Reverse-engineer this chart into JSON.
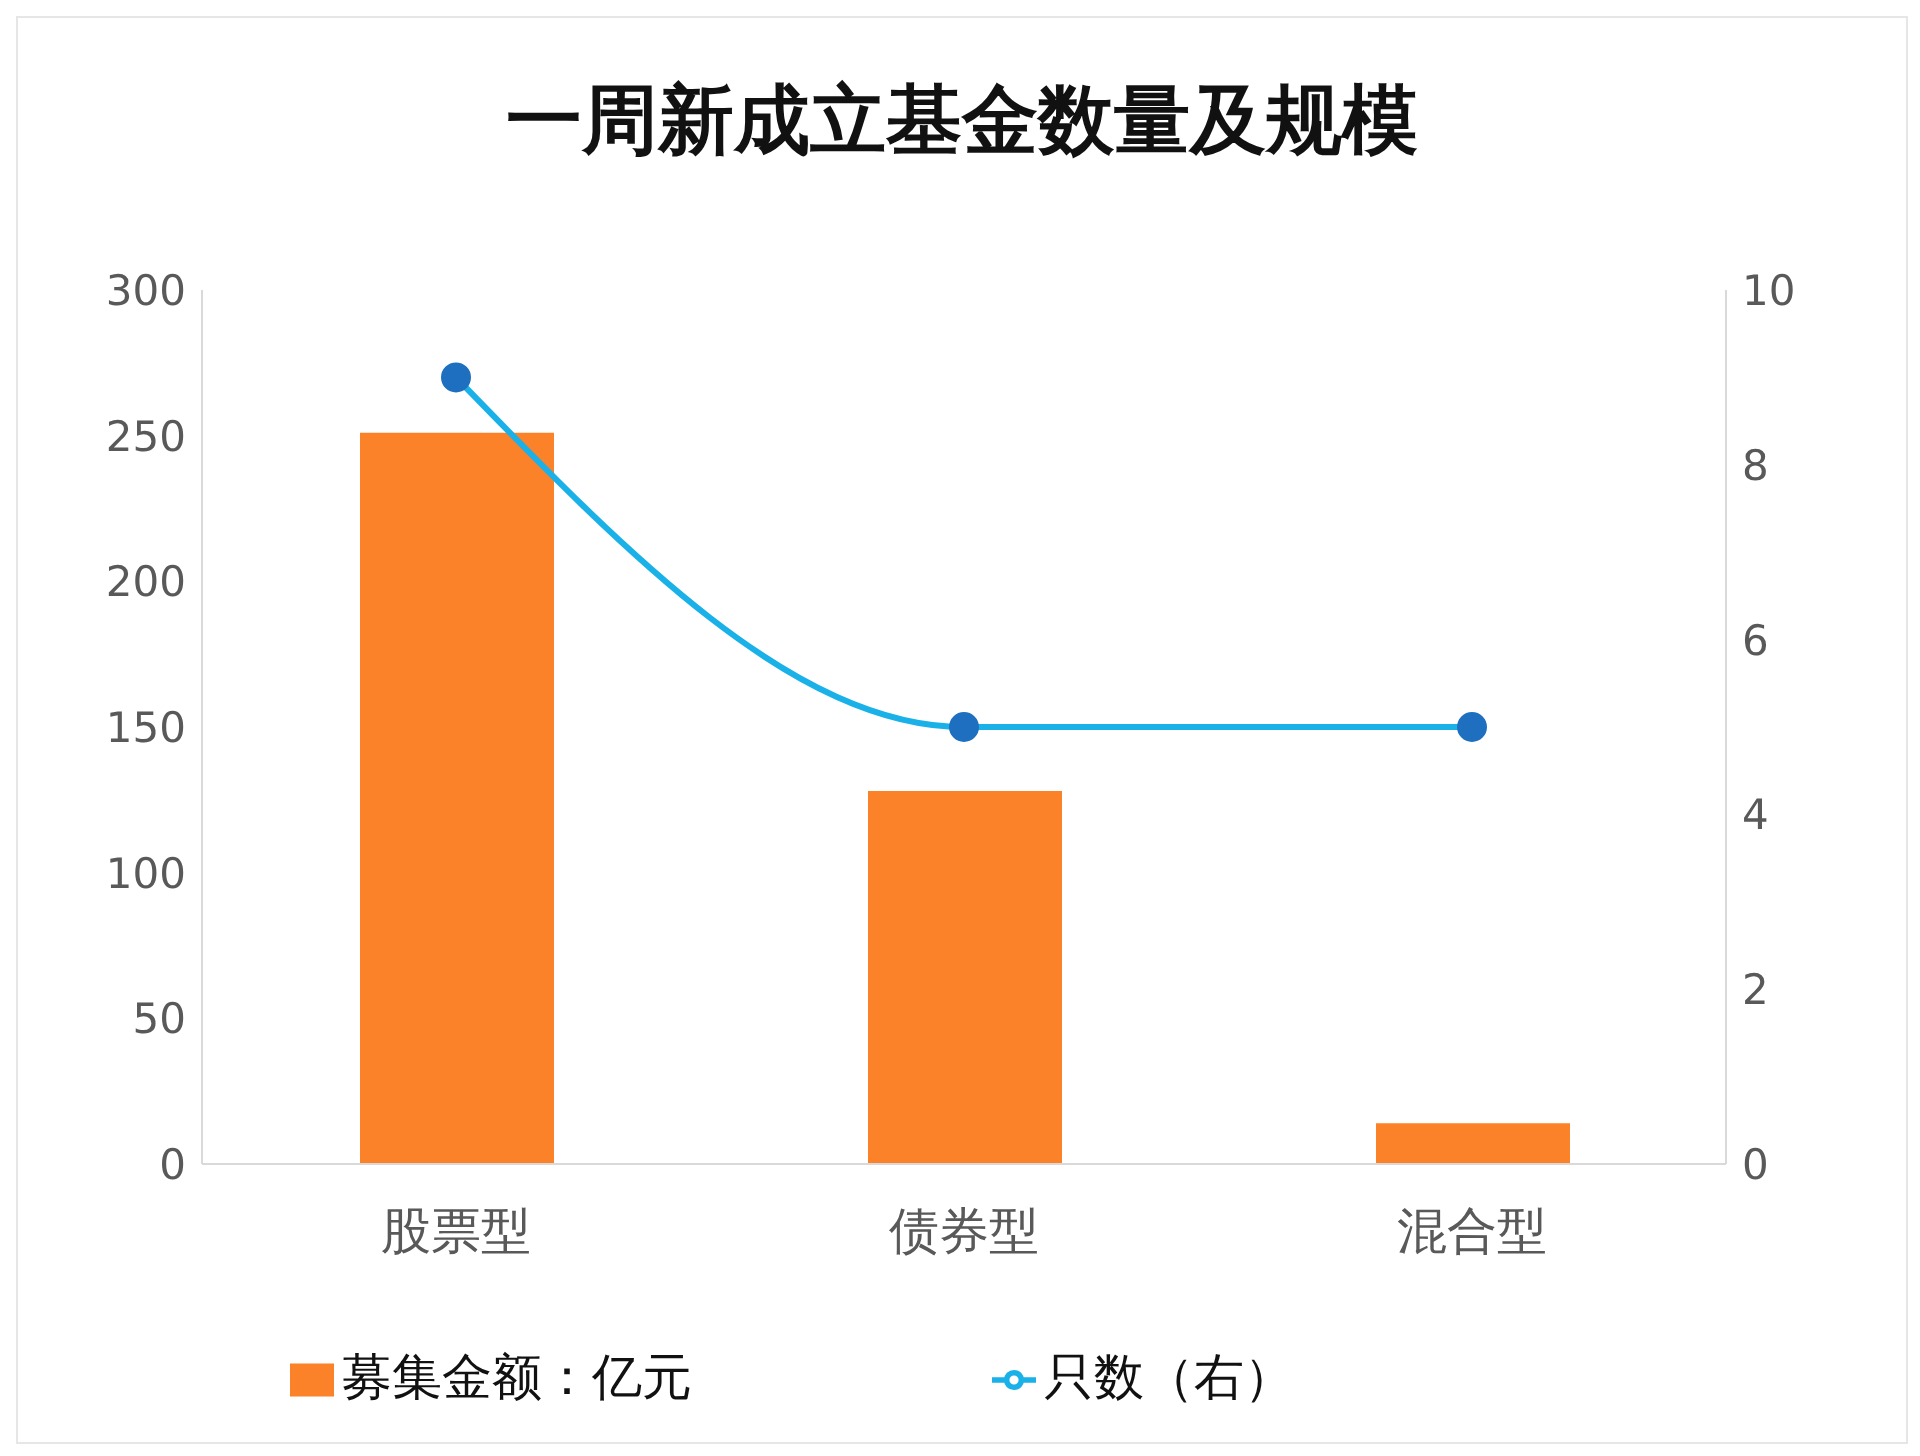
{
  "chart_data": {
    "type": "bar",
    "title": "一周新成立基金数量及规模",
    "categories": [
      "股票型",
      "债券型",
      "混合型"
    ],
    "series": [
      {
        "name": "募集金额：亿元",
        "color": "#fb8229",
        "values": [
          251,
          128,
          14
        ]
      },
      {
        "name": "只数（右）",
        "type": "line",
        "axis": "y2",
        "color": "#1ab0e8",
        "values": [
          9,
          5,
          5
        ]
      }
    ],
    "ylim": [
      0,
      300
    ],
    "yticks": [
      0,
      50,
      100,
      150,
      200,
      250,
      300
    ],
    "y2lim": [
      0,
      10
    ],
    "y2ticks": [
      0,
      2,
      4,
      6,
      8,
      10
    ],
    "marker": "circle",
    "legend": "bottom"
  }
}
